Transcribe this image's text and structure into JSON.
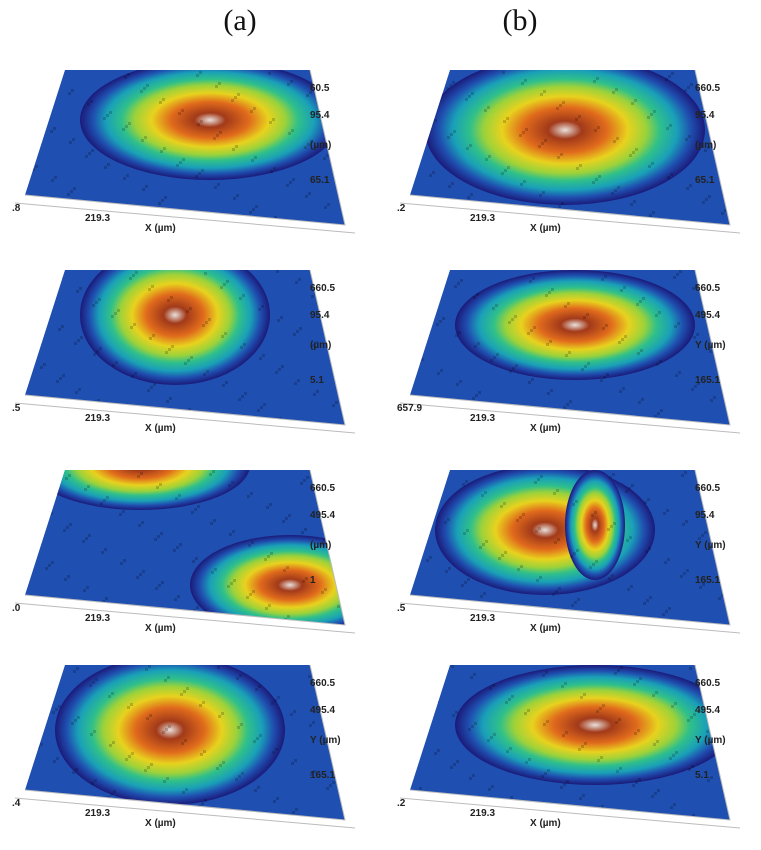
{
  "columns": [
    {
      "label": "(a)"
    },
    {
      "label": "(b)"
    }
  ],
  "panels": [
    {
      "col": "a",
      "row": 1,
      "x_axis_label": "X (µm)",
      "x_tick": "219.3",
      "x_edge_tick": ".8",
      "z_ticks": [
        "60.5",
        "95.4",
        "(µm)",
        "65.1"
      ],
      "surface": "broad dome, oxidised peak"
    },
    {
      "col": "b",
      "row": 1,
      "x_axis_label": "X (µm)",
      "x_tick": "219.3",
      "x_edge_tick": ".2",
      "z_ticks": [
        "660.5",
        "95.4",
        "(µm)",
        "65.1"
      ],
      "surface": "symmetric dome"
    },
    {
      "col": "a",
      "row": 2,
      "x_axis_label": "X (µm)",
      "x_tick": "219.3",
      "x_edge_tick": ".5",
      "z_ticks": [
        "660.5",
        "95.4",
        "(µm)",
        "5.1"
      ],
      "surface": "offset dome"
    },
    {
      "col": "b",
      "row": 2,
      "x_axis_label": "X (µm)",
      "x_tick": "219.3",
      "x_edge_tick": "657.9",
      "z_ticks": [
        "660.5",
        "495.4",
        "Y (µm)",
        "165.1"
      ],
      "surface": "dome"
    },
    {
      "col": "a",
      "row": 3,
      "x_axis_label": "X (µm)",
      "x_tick": "219.3",
      "x_edge_tick": ".0",
      "z_ticks": [
        "660.5",
        "495.4",
        "(µm)",
        "1"
      ],
      "surface": "tilted banded"
    },
    {
      "col": "b",
      "row": 3,
      "x_axis_label": "X (µm)",
      "x_tick": "219.3",
      "x_edge_tick": ".5",
      "z_ticks": [
        "660.5",
        "95.4",
        "Y (µm)",
        "165.1"
      ],
      "surface": "dome with ridge"
    },
    {
      "col": "a",
      "row": 4,
      "x_axis_label": "X (µm)",
      "x_tick": "219.3",
      "x_edge_tick": ".4",
      "z_ticks": [
        "660.5",
        "495.4",
        "Y (µm)",
        "165.1"
      ],
      "surface": "rough irregular"
    },
    {
      "col": "b",
      "row": 4,
      "x_axis_label": "X (µm)",
      "x_tick": "219.3",
      "x_edge_tick": ".2",
      "z_ticks": [
        "660.5",
        "495.4",
        "Y (µm)",
        "5.1"
      ],
      "surface": "dome with dark patch"
    }
  ],
  "colormap": [
    "#1b1a7a",
    "#1f4fb0",
    "#1aa0b8",
    "#2fc08a",
    "#9cd23a",
    "#e8d21e",
    "#e06a1c",
    "#a23a1a",
    "#e8e0dc"
  ]
}
